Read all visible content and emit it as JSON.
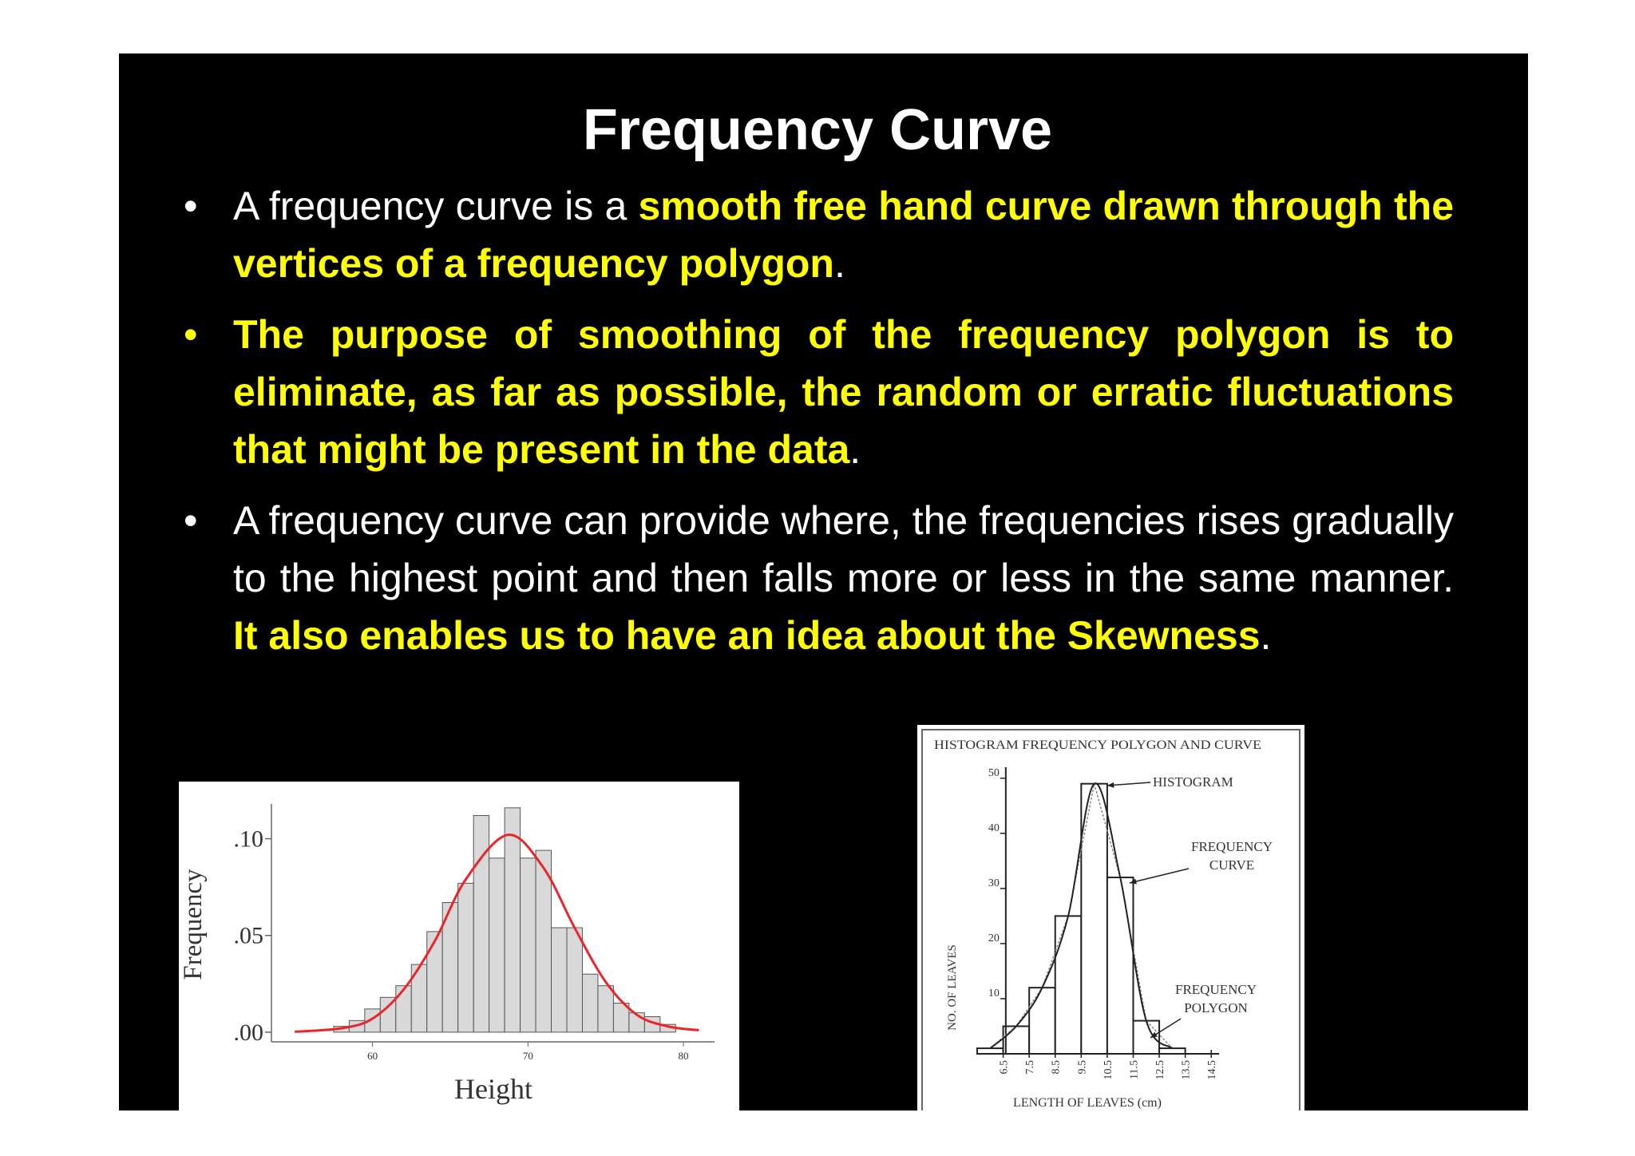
{
  "title": "Frequency Curve",
  "bullets": [
    [
      {
        "text": "A frequency curve is a "
      },
      {
        "text": "smooth free hand curve drawn through the vertices of a frequency polygon",
        "highlight": true
      },
      {
        "text": "."
      }
    ],
    [
      {
        "text": "The purpose of smoothing of the frequency polygon is to eliminate, as far as possible, the random or erratic fluctuations that might be present in the data",
        "highlight": true
      },
      {
        "text": "."
      }
    ],
    [
      {
        "text": "A frequency curve can provide where, the frequencies rises gradually to the highest point and then falls more or less in the same manner. "
      },
      {
        "text": "It also enables us to have an idea about the Skewness",
        "highlight": true
      },
      {
        "text": "."
      }
    ]
  ],
  "chart_data": [
    {
      "type": "histogram",
      "xlabel": "Height",
      "ylabel": "Frequency",
      "bins": [
        57.5,
        58.5,
        59.5,
        60.5,
        61.5,
        62.5,
        63.5,
        64.5,
        65.5,
        66.5,
        67.5,
        68.5,
        69.5,
        70.5,
        71.5,
        72.5,
        73.5,
        74.5,
        75.5,
        76.5,
        77.5,
        78.5,
        79.5
      ],
      "values": [
        0.003,
        0.006,
        0.012,
        0.018,
        0.024,
        0.035,
        0.052,
        0.067,
        0.077,
        0.112,
        0.09,
        0.116,
        0.09,
        0.094,
        0.054,
        0.054,
        0.03,
        0.024,
        0.015,
        0.01,
        0.008,
        0.004
      ],
      "color": "#d9d9d9",
      "xlim": [
        53.5,
        82
      ],
      "ylim": [
        -0.005,
        0.118
      ],
      "xticks": [
        60,
        70,
        80
      ],
      "yticks": [
        {
          "value": 0,
          "label": ".00"
        },
        {
          "value": 0.05,
          "label": ".05"
        },
        {
          "value": 0.1,
          "label": ".10"
        }
      ],
      "curve": {
        "color": "#e8262b",
        "x": [
          55,
          58,
          60,
          62,
          64,
          66,
          68.7,
          71,
          73,
          75,
          77,
          79,
          81
        ],
        "values": [
          0.0002,
          0.002,
          0.007,
          0.022,
          0.047,
          0.079,
          0.102,
          0.085,
          0.054,
          0.026,
          0.009,
          0.003,
          0.001
        ]
      }
    },
    {
      "type": "histogram",
      "title": "HISTOGRAM FREQUENCY POLYGON AND CURVE",
      "xlabel": "LENGTH OF LEAVES (cm)",
      "ylabel": "NO. OF LEAVES",
      "bins": [
        5.5,
        6.5,
        7.5,
        8.5,
        9.5,
        10.5,
        11.5,
        12.5,
        13.5
      ],
      "values": [
        1,
        5,
        12,
        25,
        49,
        32,
        6,
        1
      ],
      "color": "#ffffff",
      "xlim": [
        5.5,
        14.8
      ],
      "ylim": [
        0,
        52
      ],
      "xticks": [
        6.5,
        7.5,
        8.5,
        9.5,
        10.5,
        11.5,
        12.5,
        13.5,
        14.5
      ],
      "yticks": [
        10,
        20,
        30,
        40,
        50
      ],
      "annotations": [
        {
          "lines": [
            "HISTOGRAM"
          ]
        },
        {
          "lines": [
            "FREQUENCY",
            "CURVE"
          ]
        },
        {
          "lines": [
            "FREQUENCY",
            "POLYGON"
          ]
        }
      ]
    }
  ]
}
